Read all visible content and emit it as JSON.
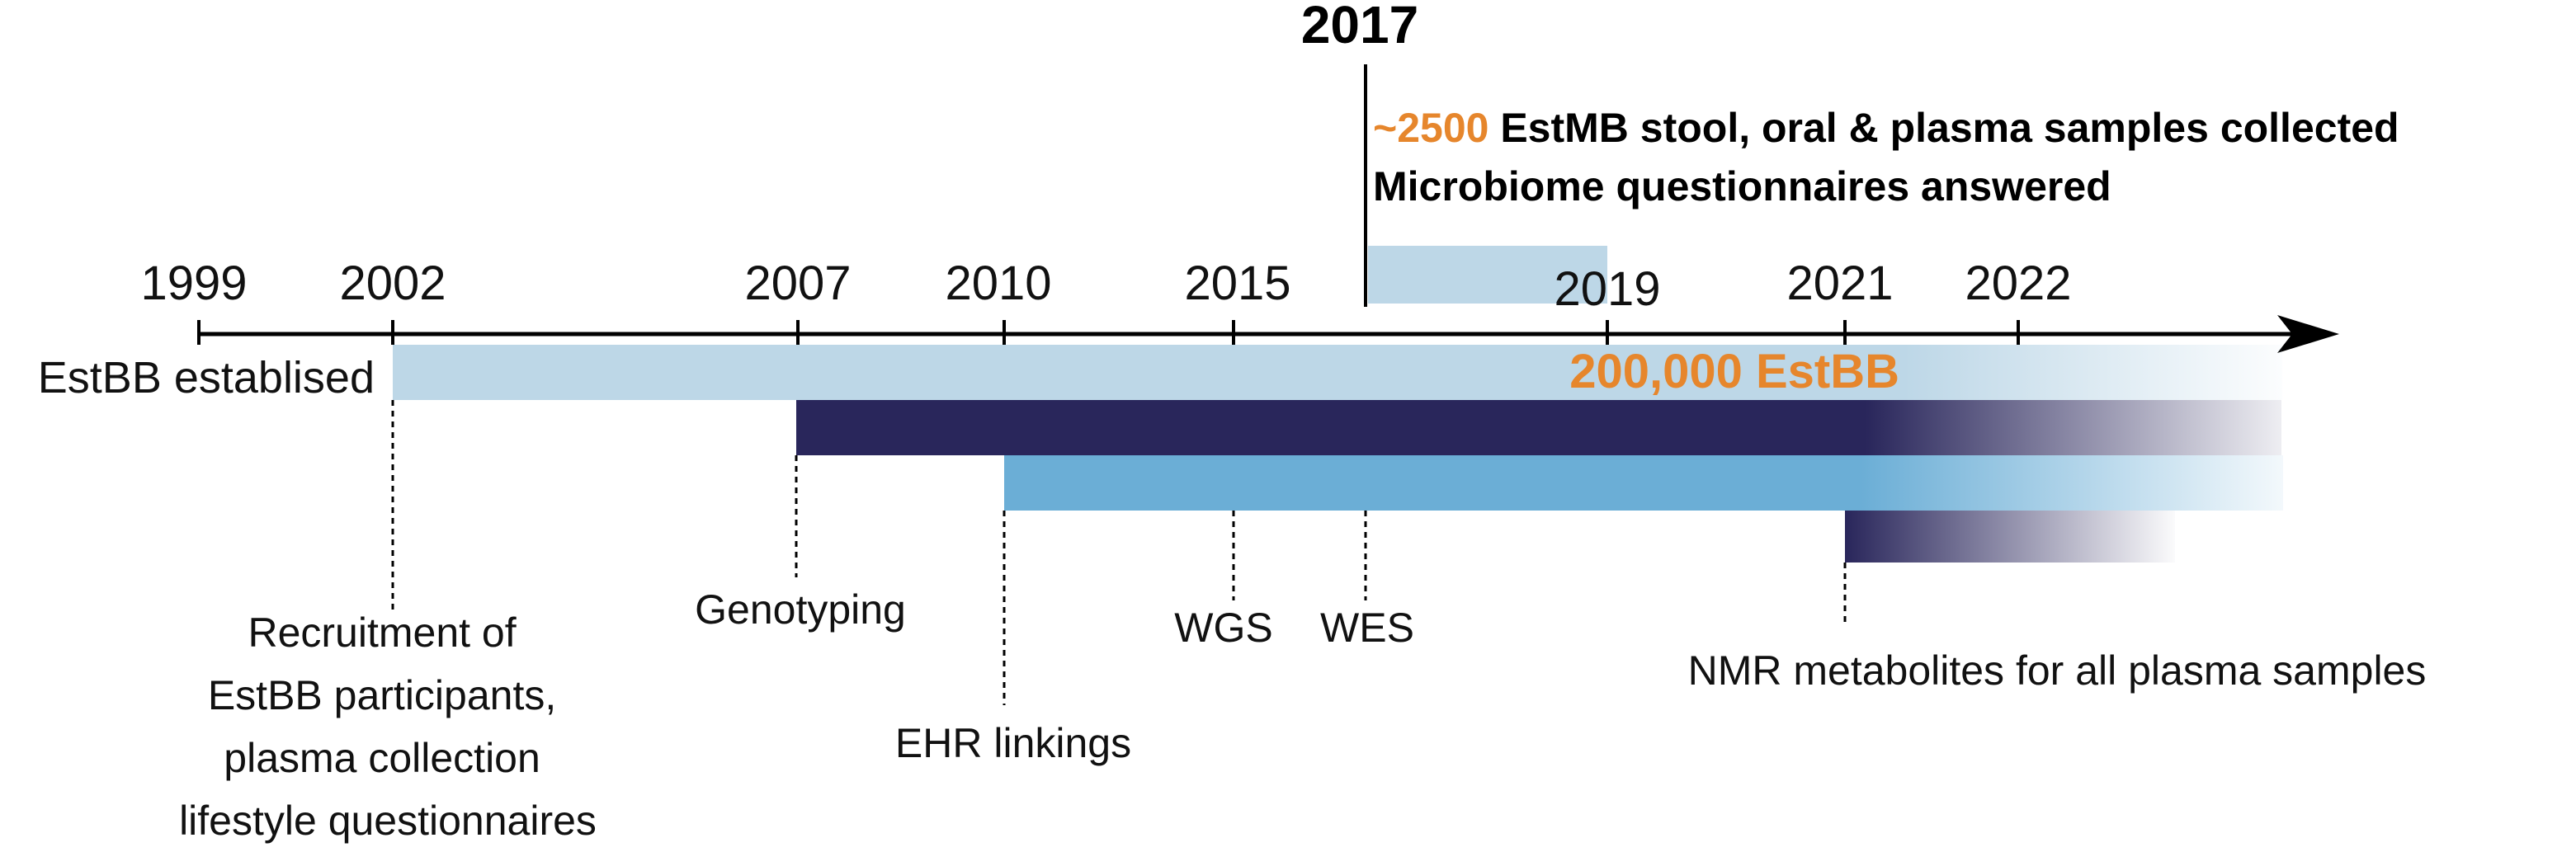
{
  "highlight": {
    "year": "2017",
    "count": "~2500",
    "line1_rest": " EstMB stool, oral & plasma samples collected",
    "line2": "Microbiome questionnaires answered"
  },
  "axis_years": [
    "1999",
    "2002",
    "2007",
    "2010",
    "2015",
    "2019",
    "2021",
    "2022"
  ],
  "labels": {
    "established": "EstBB establised",
    "estbb_size": "200,000 EstBB",
    "recruitment": [
      "Recruitment of",
      "EstBB participants,",
      "plasma collection",
      "lifestyle questionnaires"
    ],
    "genotyping": "Genotyping",
    "ehr": "EHR linkings",
    "wgs": "WGS",
    "wes": "WES",
    "nmr": "NMR metabolites for all plasma samples"
  },
  "colors": {
    "light_blue": "#bdd7e7",
    "navy": "#29265b",
    "mid_blue": "#6baed6",
    "orange": "#e6862c",
    "black": "#000000"
  }
}
